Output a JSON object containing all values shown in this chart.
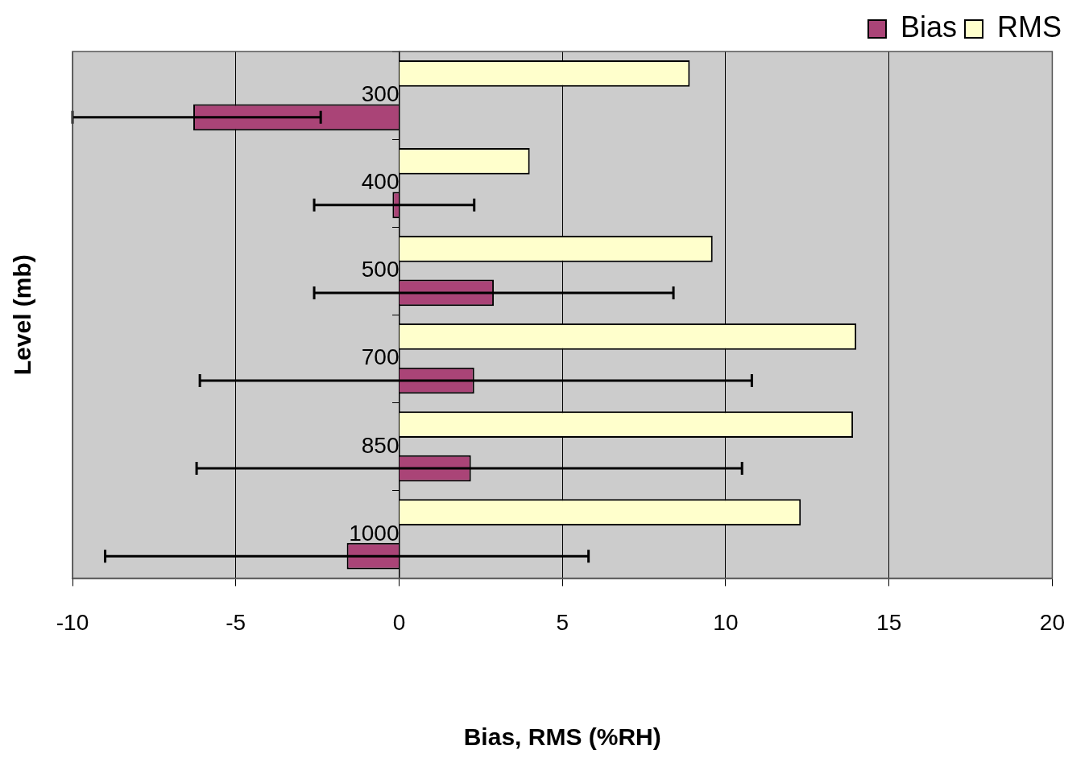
{
  "chart_data": {
    "type": "bar",
    "orientation": "horizontal",
    "xlabel": "Bias, RMS (%RH)",
    "ylabel": "Level (mb)",
    "categories": [
      "300",
      "400",
      "500",
      "700",
      "850",
      "1000"
    ],
    "series": [
      {
        "name": "RMS",
        "color": "#ffffcc",
        "values": [
          8.9,
          4.0,
          9.6,
          14.0,
          13.9,
          12.3
        ]
      },
      {
        "name": "Bias",
        "color": "#aa4477",
        "values": [
          -6.3,
          -0.2,
          2.9,
          2.3,
          2.2,
          -1.6
        ],
        "errors": [
          [
            -10,
            -2.4
          ],
          [
            -2.6,
            2.3
          ],
          [
            -2.6,
            8.4
          ],
          [
            -6.1,
            10.8
          ],
          [
            -6.2,
            10.5
          ],
          [
            -9.0,
            5.8
          ]
        ]
      }
    ],
    "xlim": [
      -10,
      20
    ],
    "xticks": [
      -10,
      -5,
      0,
      5,
      10,
      15,
      20
    ],
    "grid": "x",
    "legend": "top right"
  }
}
